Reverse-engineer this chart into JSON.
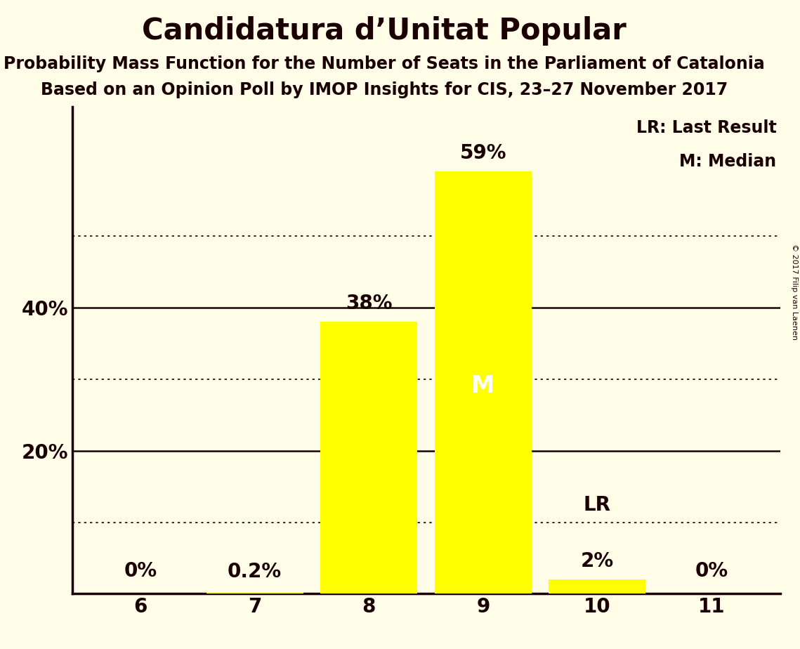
{
  "title": "Candidatura d’Unitat Popular",
  "subtitle1": "Probability Mass Function for the Number of Seats in the Parliament of Catalonia",
  "subtitle2": "Based on an Opinion Poll by IMOP Insights for CIS, 23–27 November 2017",
  "copyright": "© 2017 Filip van Laenen",
  "categories": [
    6,
    7,
    8,
    9,
    10,
    11
  ],
  "values": [
    0.0,
    0.2,
    38.0,
    59.0,
    2.0,
    0.0
  ],
  "bar_color": "#FFFF00",
  "background_color": "#FFFCE8",
  "text_color": "#1a0000",
  "ylim": [
    0,
    68
  ],
  "dotted_grid_values": [
    10,
    30,
    50
  ],
  "solid_grid_values": [
    20,
    40
  ],
  "bar_labels": {
    "6": "0%",
    "7": "0.2%",
    "8": "38%",
    "9": "59%",
    "10": "2%",
    "11": "0%"
  },
  "legend_text": [
    "LR: Last Result",
    "M: Median"
  ],
  "title_fontsize": 30,
  "subtitle_fontsize": 17,
  "bar_label_fontsize": 20,
  "axis_tick_fontsize": 20,
  "legend_fontsize": 17,
  "median_label_fontsize": 24,
  "lr_label_fontsize": 20,
  "copyright_fontsize": 8,
  "median_bar": 9,
  "last_result_bar": 10,
  "bar_width": 0.85,
  "xlim": [
    5.4,
    11.6
  ]
}
